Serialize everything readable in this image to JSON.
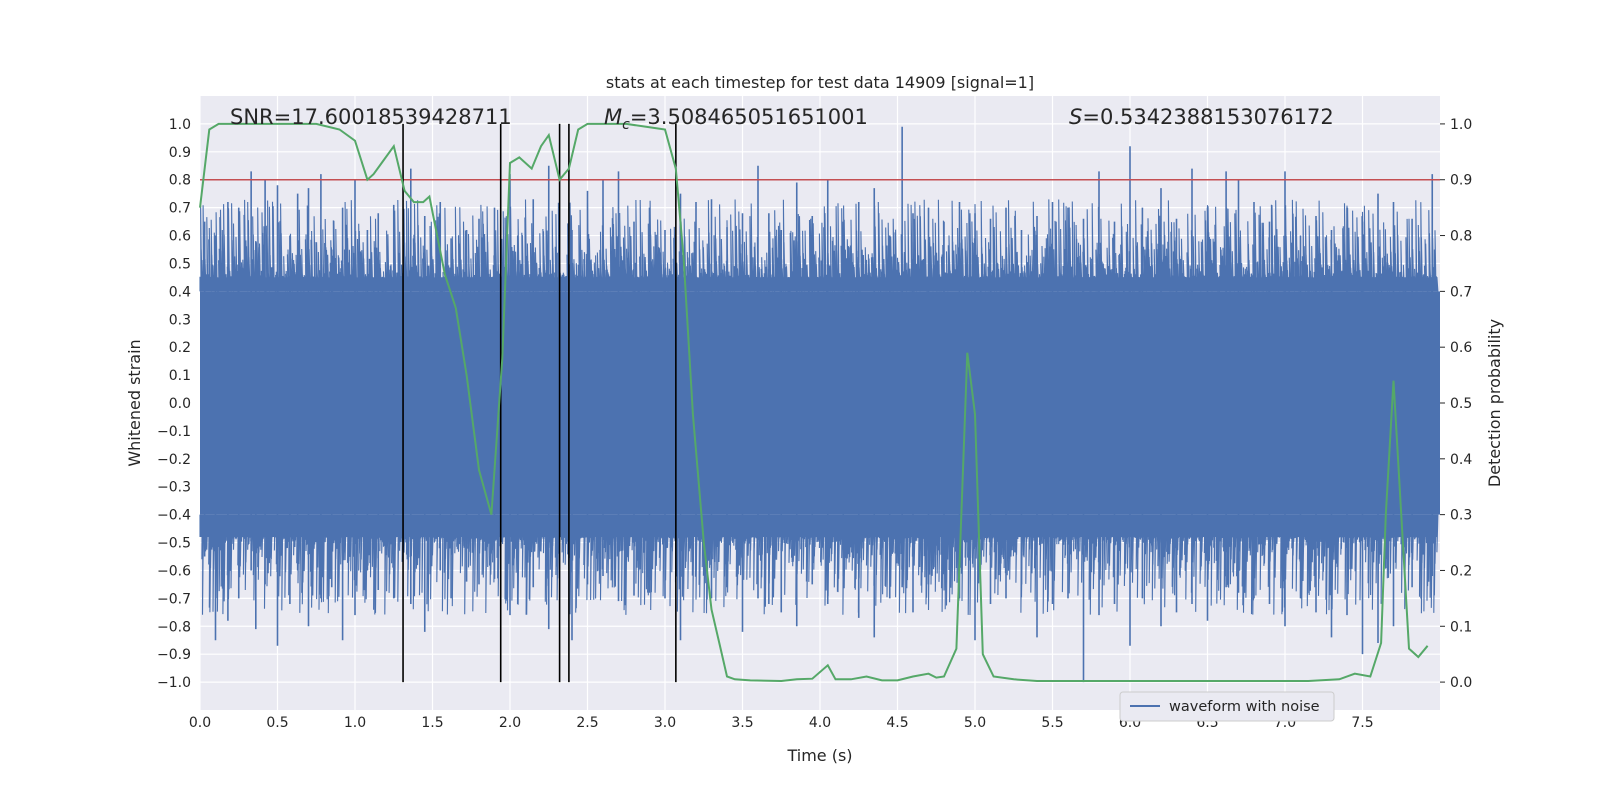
{
  "chart_data": {
    "type": "line",
    "title": "stats at each timestep for test data 14909 [signal=1]",
    "xlabel": "Time (s)",
    "ylabel_left": "Whitened strain",
    "ylabel_right": "Detection probability",
    "xlim": [
      0.0,
      8.0
    ],
    "ylim_left": [
      -1.1,
      1.1
    ],
    "ylim_right": [
      -0.05,
      1.05
    ],
    "x_ticks": [
      "0.0",
      "0.5",
      "1.0",
      "1.5",
      "2.0",
      "2.5",
      "3.0",
      "3.5",
      "4.0",
      "4.5",
      "5.0",
      "5.5",
      "6.0",
      "6.5",
      "7.0",
      "7.5"
    ],
    "y_ticks_left": [
      "1.0",
      "0.9",
      "0.8",
      "0.7",
      "0.6",
      "0.5",
      "0.4",
      "0.3",
      "0.2",
      "0.1",
      "0.0",
      "−0.1",
      "−0.2",
      "−0.3",
      "−0.4",
      "−0.5",
      "−0.6",
      "−0.7",
      "−0.8",
      "−0.9",
      "−1.0"
    ],
    "y_ticks_right": [
      "1.0",
      "0.9",
      "0.8",
      "0.7",
      "0.6",
      "0.5",
      "0.4",
      "0.3",
      "0.2",
      "0.1",
      "0.0"
    ],
    "grid": true,
    "legend": {
      "placement": "lower-right",
      "entries": [
        "waveform with noise"
      ]
    },
    "annotations": {
      "snr": "SNR=17.60018539428711",
      "mc_symbol": "M",
      "mc_sub": "c",
      "mc_value": "=3.508465051651001",
      "s_symbol": "S",
      "s_value": "=0.5342388153076172"
    },
    "threshold": {
      "value": 0.8,
      "axis": "left",
      "color": "#c44e52"
    },
    "vertical_markers": [
      1.31,
      1.94,
      2.32,
      2.38,
      3.07
    ],
    "waveform": {
      "name": "waveform with noise",
      "color": "#4c72b0",
      "envelope_core": 0.4,
      "peak_times": [
        0.03,
        0.1,
        0.18,
        0.25,
        0.33,
        0.36,
        0.42,
        0.5,
        0.58,
        0.63,
        0.7,
        0.78,
        0.85,
        0.92,
        1.0,
        1.08,
        1.15,
        1.25,
        1.36,
        1.45,
        1.55,
        1.62,
        1.72,
        1.8,
        1.9,
        2.0,
        2.05,
        2.15,
        2.25,
        2.4,
        2.5,
        2.6,
        2.7,
        2.8,
        2.9,
        3.0,
        3.1,
        3.2,
        3.3,
        3.4,
        3.5,
        3.6,
        3.67,
        3.75,
        3.85,
        3.95,
        4.05,
        4.15,
        4.25,
        4.35,
        4.45,
        4.53,
        4.6,
        4.7,
        4.8,
        4.9,
        5.0,
        5.1,
        5.2,
        5.3,
        5.4,
        5.5,
        5.6,
        5.7,
        5.8,
        5.9,
        6.0,
        6.08,
        6.2,
        6.3,
        6.4,
        6.5,
        6.62,
        6.7,
        6.8,
        6.9,
        7.0,
        7.1,
        7.2,
        7.3,
        7.4,
        7.5,
        7.6,
        7.7,
        7.82,
        7.95
      ],
      "peak_highs": [
        0.65,
        0.6,
        0.72,
        0.7,
        0.83,
        0.58,
        0.8,
        0.78,
        0.6,
        0.75,
        0.77,
        0.82,
        0.55,
        0.7,
        0.8,
        0.62,
        0.68,
        0.71,
        0.84,
        0.67,
        0.72,
        0.59,
        0.62,
        0.66,
        0.7,
        0.82,
        0.6,
        0.73,
        0.85,
        0.62,
        0.76,
        0.8,
        0.83,
        0.65,
        0.7,
        0.62,
        0.75,
        0.72,
        0.73,
        0.63,
        0.68,
        0.85,
        0.68,
        0.62,
        0.79,
        0.67,
        0.8,
        0.65,
        0.72,
        0.77,
        0.6,
        0.99,
        0.68,
        0.7,
        0.65,
        0.72,
        0.68,
        0.66,
        0.7,
        0.62,
        0.67,
        0.72,
        0.7,
        0.66,
        0.83,
        0.65,
        0.92,
        0.7,
        0.77,
        0.66,
        0.84,
        0.7,
        0.83,
        0.8,
        0.72,
        0.65,
        0.83,
        0.6,
        0.67,
        0.62,
        0.7,
        0.65,
        0.75,
        0.72,
        0.66,
        0.82
      ],
      "peak_lows": [
        -0.55,
        -0.85,
        -0.78,
        -0.7,
        -0.6,
        -0.81,
        -0.65,
        -0.87,
        -0.72,
        -0.6,
        -0.8,
        -0.7,
        -0.66,
        -0.85,
        -0.76,
        -0.6,
        -0.67,
        -0.7,
        -0.72,
        -0.82,
        -0.6,
        -0.7,
        -0.64,
        -0.65,
        -0.63,
        -0.76,
        -0.72,
        -0.66,
        -0.81,
        -0.85,
        -0.65,
        -0.62,
        -0.71,
        -0.69,
        -0.68,
        -0.7,
        -0.85,
        -0.6,
        -0.7,
        -0.66,
        -0.82,
        -0.7,
        -0.72,
        -0.75,
        -0.8,
        -0.65,
        -0.72,
        -0.62,
        -0.77,
        -0.84,
        -0.7,
        -0.66,
        -0.75,
        -0.65,
        -0.6,
        -0.7,
        -0.85,
        -0.72,
        -0.7,
        -0.65,
        -0.84,
        -0.72,
        -0.7,
        -1.0,
        -0.76,
        -0.72,
        -0.87,
        -0.7,
        -0.8,
        -0.75,
        -0.72,
        -0.78,
        -0.66,
        -0.68,
        -0.7,
        -0.72,
        -0.8,
        -0.7,
        -0.75,
        -0.84,
        -0.76,
        -0.9,
        -0.86,
        -0.8,
        -0.66,
        -0.62
      ]
    },
    "detection_probability": {
      "color": "#55a868",
      "x": [
        0.0,
        0.06,
        0.12,
        0.25,
        0.5,
        0.75,
        0.9,
        1.0,
        1.08,
        1.12,
        1.25,
        1.32,
        1.38,
        1.44,
        1.48,
        1.58,
        1.65,
        1.72,
        1.8,
        1.88,
        1.95,
        2.0,
        2.06,
        2.14,
        2.2,
        2.25,
        2.32,
        2.38,
        2.44,
        2.5,
        2.75,
        3.0,
        3.07,
        3.12,
        3.18,
        3.25,
        3.3,
        3.35,
        3.4,
        3.45,
        3.55,
        3.75,
        3.85,
        3.95,
        4.05,
        4.1,
        4.2,
        4.3,
        4.4,
        4.5,
        4.6,
        4.7,
        4.75,
        4.8,
        4.88,
        4.95,
        5.0,
        5.05,
        5.12,
        5.25,
        5.4,
        5.7,
        6.0,
        6.25,
        6.75,
        7.15,
        7.35,
        7.45,
        7.55,
        7.62,
        7.65,
        7.7,
        7.8,
        7.86,
        7.92
      ],
      "y": [
        0.85,
        0.99,
        1.0,
        1.0,
        1.0,
        1.0,
        0.99,
        0.97,
        0.9,
        0.91,
        0.96,
        0.88,
        0.86,
        0.86,
        0.87,
        0.73,
        0.67,
        0.55,
        0.38,
        0.3,
        0.58,
        0.93,
        0.94,
        0.92,
        0.96,
        0.98,
        0.9,
        0.92,
        0.99,
        1.0,
        1.0,
        0.99,
        0.92,
        0.76,
        0.48,
        0.25,
        0.13,
        0.07,
        0.01,
        0.005,
        0.003,
        0.002,
        0.005,
        0.006,
        0.03,
        0.005,
        0.005,
        0.01,
        0.003,
        0.003,
        0.01,
        0.015,
        0.008,
        0.01,
        0.06,
        0.59,
        0.48,
        0.05,
        0.01,
        0.005,
        0.002,
        0.002,
        0.002,
        0.002,
        0.002,
        0.002,
        0.005,
        0.015,
        0.01,
        0.07,
        0.3,
        0.54,
        0.06,
        0.045,
        0.065
      ]
    }
  }
}
